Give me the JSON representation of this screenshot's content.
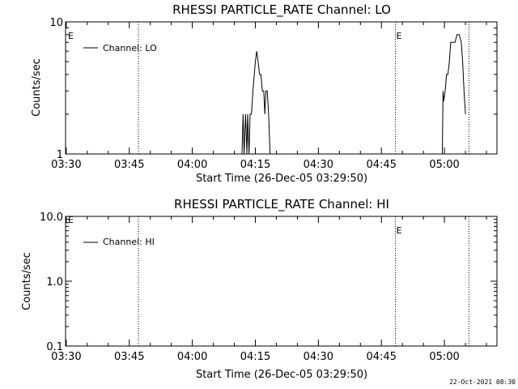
{
  "footer": {
    "timestamp": "22-Oct-2021 08:30"
  },
  "chart_data": [
    {
      "type": "line",
      "title": "RHESSI PARTICLE_RATE Channel: LO",
      "xlabel": "Start Time (26-Dec-05 03:29:50)",
      "ylabel": "Counts/sec",
      "yscale": "log",
      "ylim": [
        1,
        10
      ],
      "yticks": [
        1,
        10
      ],
      "ytick_labels": [
        "1",
        "10"
      ],
      "xlim": [
        "03:29:50",
        "05:12:30"
      ],
      "xticks": [
        "03:30",
        "03:45",
        "04:00",
        "04:15",
        "04:30",
        "04:45",
        "05:00"
      ],
      "legend": {
        "placement": "top-left",
        "label": "Channel: LO"
      },
      "markers": [
        {
          "time": "03:47:10",
          "label": ""
        },
        {
          "time": "04:48:20",
          "label": "E"
        },
        {
          "time": "05:05:50",
          "label": ""
        }
      ],
      "start_marker_label": "E",
      "series": [
        {
          "name": "Channel: LO",
          "points": [
            [
              "04:11:50",
              1
            ],
            [
              "04:12:05",
              2.0
            ],
            [
              "04:12:20",
              1
            ],
            [
              "04:12:40",
              2.0
            ],
            [
              "04:13:00",
              1
            ],
            [
              "04:13:10",
              2.0
            ],
            [
              "04:13:30",
              1
            ],
            [
              "04:13:45",
              2.0
            ],
            [
              "04:14:05",
              2.0
            ],
            [
              "04:14:25",
              3.0
            ],
            [
              "04:14:45",
              4.0
            ],
            [
              "04:15:00",
              5.0
            ],
            [
              "04:15:20",
              6.0
            ],
            [
              "04:15:40",
              5.0
            ],
            [
              "04:16:00",
              4.0
            ],
            [
              "04:16:20",
              4.0
            ],
            [
              "04:16:40",
              3.0
            ],
            [
              "04:17:00",
              3.0
            ],
            [
              "04:17:15",
              2.0
            ],
            [
              "04:17:30",
              3.0
            ],
            [
              "04:17:50",
              3.0
            ],
            [
              "04:18:10",
              2.0
            ],
            [
              "04:18:30",
              1
            ]
          ]
        },
        {
          "name": "Channel: LO (second interval)",
          "points": [
            [
              "04:59:30",
              1
            ],
            [
              "04:59:40",
              3.0
            ],
            [
              "04:59:50",
              2.5
            ],
            [
              "05:00:10",
              3.0
            ],
            [
              "05:00:30",
              4.0
            ],
            [
              "05:00:50",
              4.0
            ],
            [
              "05:01:10",
              5.0
            ],
            [
              "05:01:30",
              7.0
            ],
            [
              "05:02:00",
              7.0
            ],
            [
              "05:02:30",
              7.0
            ],
            [
              "05:03:00",
              8.0
            ],
            [
              "05:03:30",
              8.0
            ],
            [
              "05:04:00",
              7.0
            ],
            [
              "05:04:20",
              5.0
            ],
            [
              "05:04:40",
              3.0
            ],
            [
              "05:05:00",
              2.0
            ]
          ]
        }
      ]
    },
    {
      "type": "line",
      "title": "RHESSI PARTICLE_RATE Channel: HI",
      "xlabel": "Start Time (26-Dec-05 03:29:50)",
      "ylabel": "Counts/sec",
      "yscale": "log",
      "ylim": [
        0.1,
        10
      ],
      "yticks": [
        0.1,
        1,
        10
      ],
      "ytick_labels": [
        "0.1",
        "1.0",
        "10.0"
      ],
      "xlim": [
        "03:29:50",
        "05:12:30"
      ],
      "xticks": [
        "03:30",
        "03:45",
        "04:00",
        "04:15",
        "04:30",
        "04:45",
        "05:00"
      ],
      "legend": {
        "placement": "top-left",
        "label": "Channel: HI"
      },
      "markers": [
        {
          "time": "03:47:10",
          "label": ""
        },
        {
          "time": "04:48:20",
          "label": "E"
        },
        {
          "time": "05:05:50",
          "label": ""
        }
      ],
      "start_marker_label": "E",
      "series": [
        {
          "name": "Channel: HI",
          "points": []
        }
      ]
    }
  ]
}
